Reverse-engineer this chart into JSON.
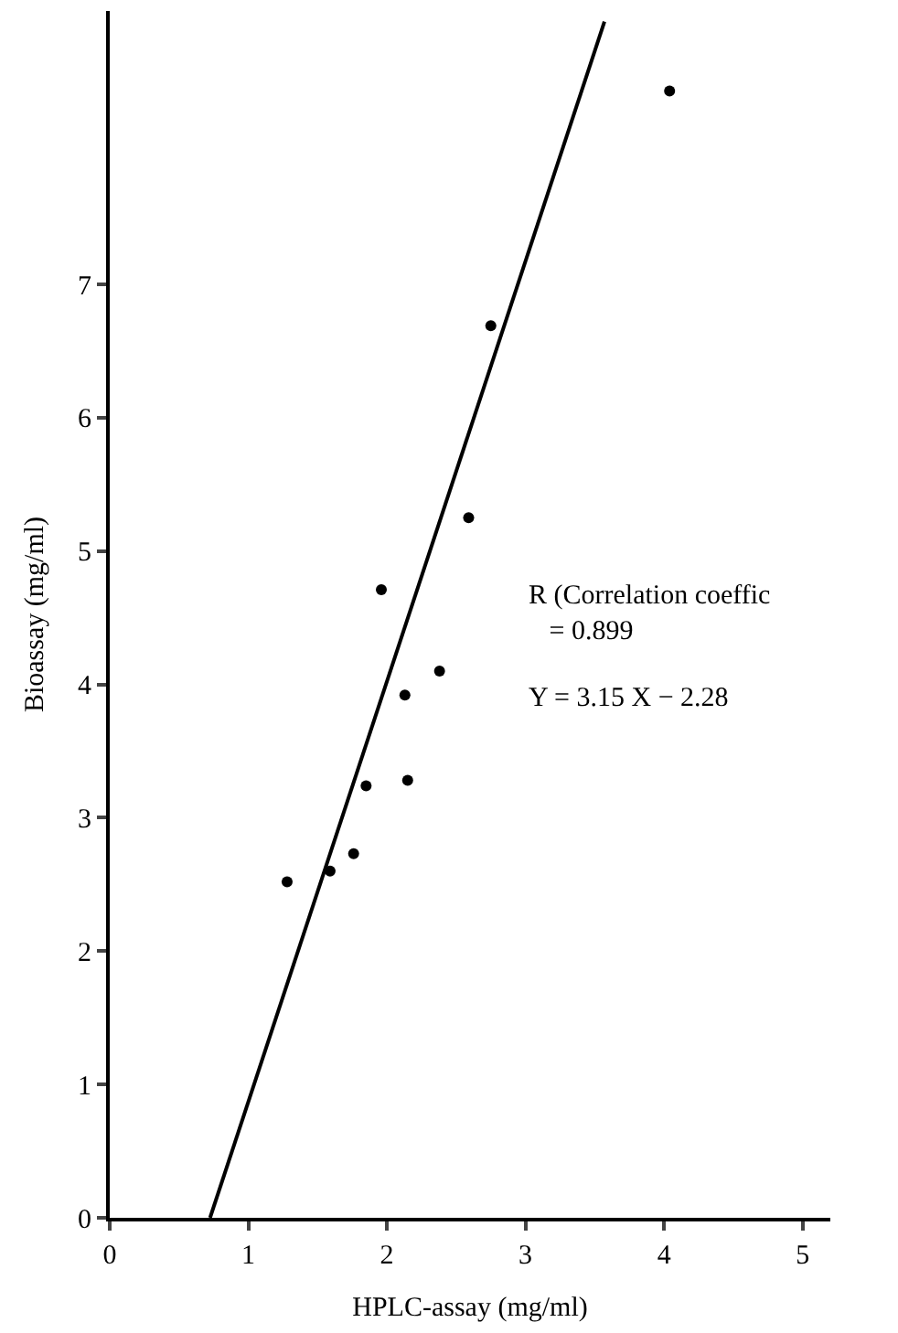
{
  "chart_data": {
    "type": "scatter",
    "xlabel": "HPLC-assay (mg/ml)",
    "ylabel": "Bioassay (mg/ml)",
    "xlim": [
      0,
      5.2
    ],
    "ylim": [
      0,
      9.05
    ],
    "xticks": [
      0,
      1,
      2,
      3,
      4,
      5
    ],
    "yticks": [
      0,
      1,
      2,
      3,
      4,
      5,
      6,
      7
    ],
    "marker": "circle",
    "series": [
      {
        "color": "#000000",
        "x": [
          1.28,
          1.59,
          1.76,
          1.85,
          2.15,
          1.96,
          2.13,
          2.38,
          2.59,
          2.75,
          4.04
        ],
        "values": [
          2.52,
          2.6,
          2.73,
          3.24,
          3.28,
          4.71,
          3.92,
          4.1,
          5.25,
          6.69,
          8.45
        ]
      },
      {
        "type": "line",
        "marker": "none",
        "color": "#000000",
        "line_style": "solid",
        "x": [
          0.724,
          3.57
        ],
        "values": [
          0,
          8.97
        ]
      }
    ],
    "annotations": [
      "R (Correlation coeffic\n   = 0.899",
      "Y = 3.15 X − 2.28"
    ]
  }
}
